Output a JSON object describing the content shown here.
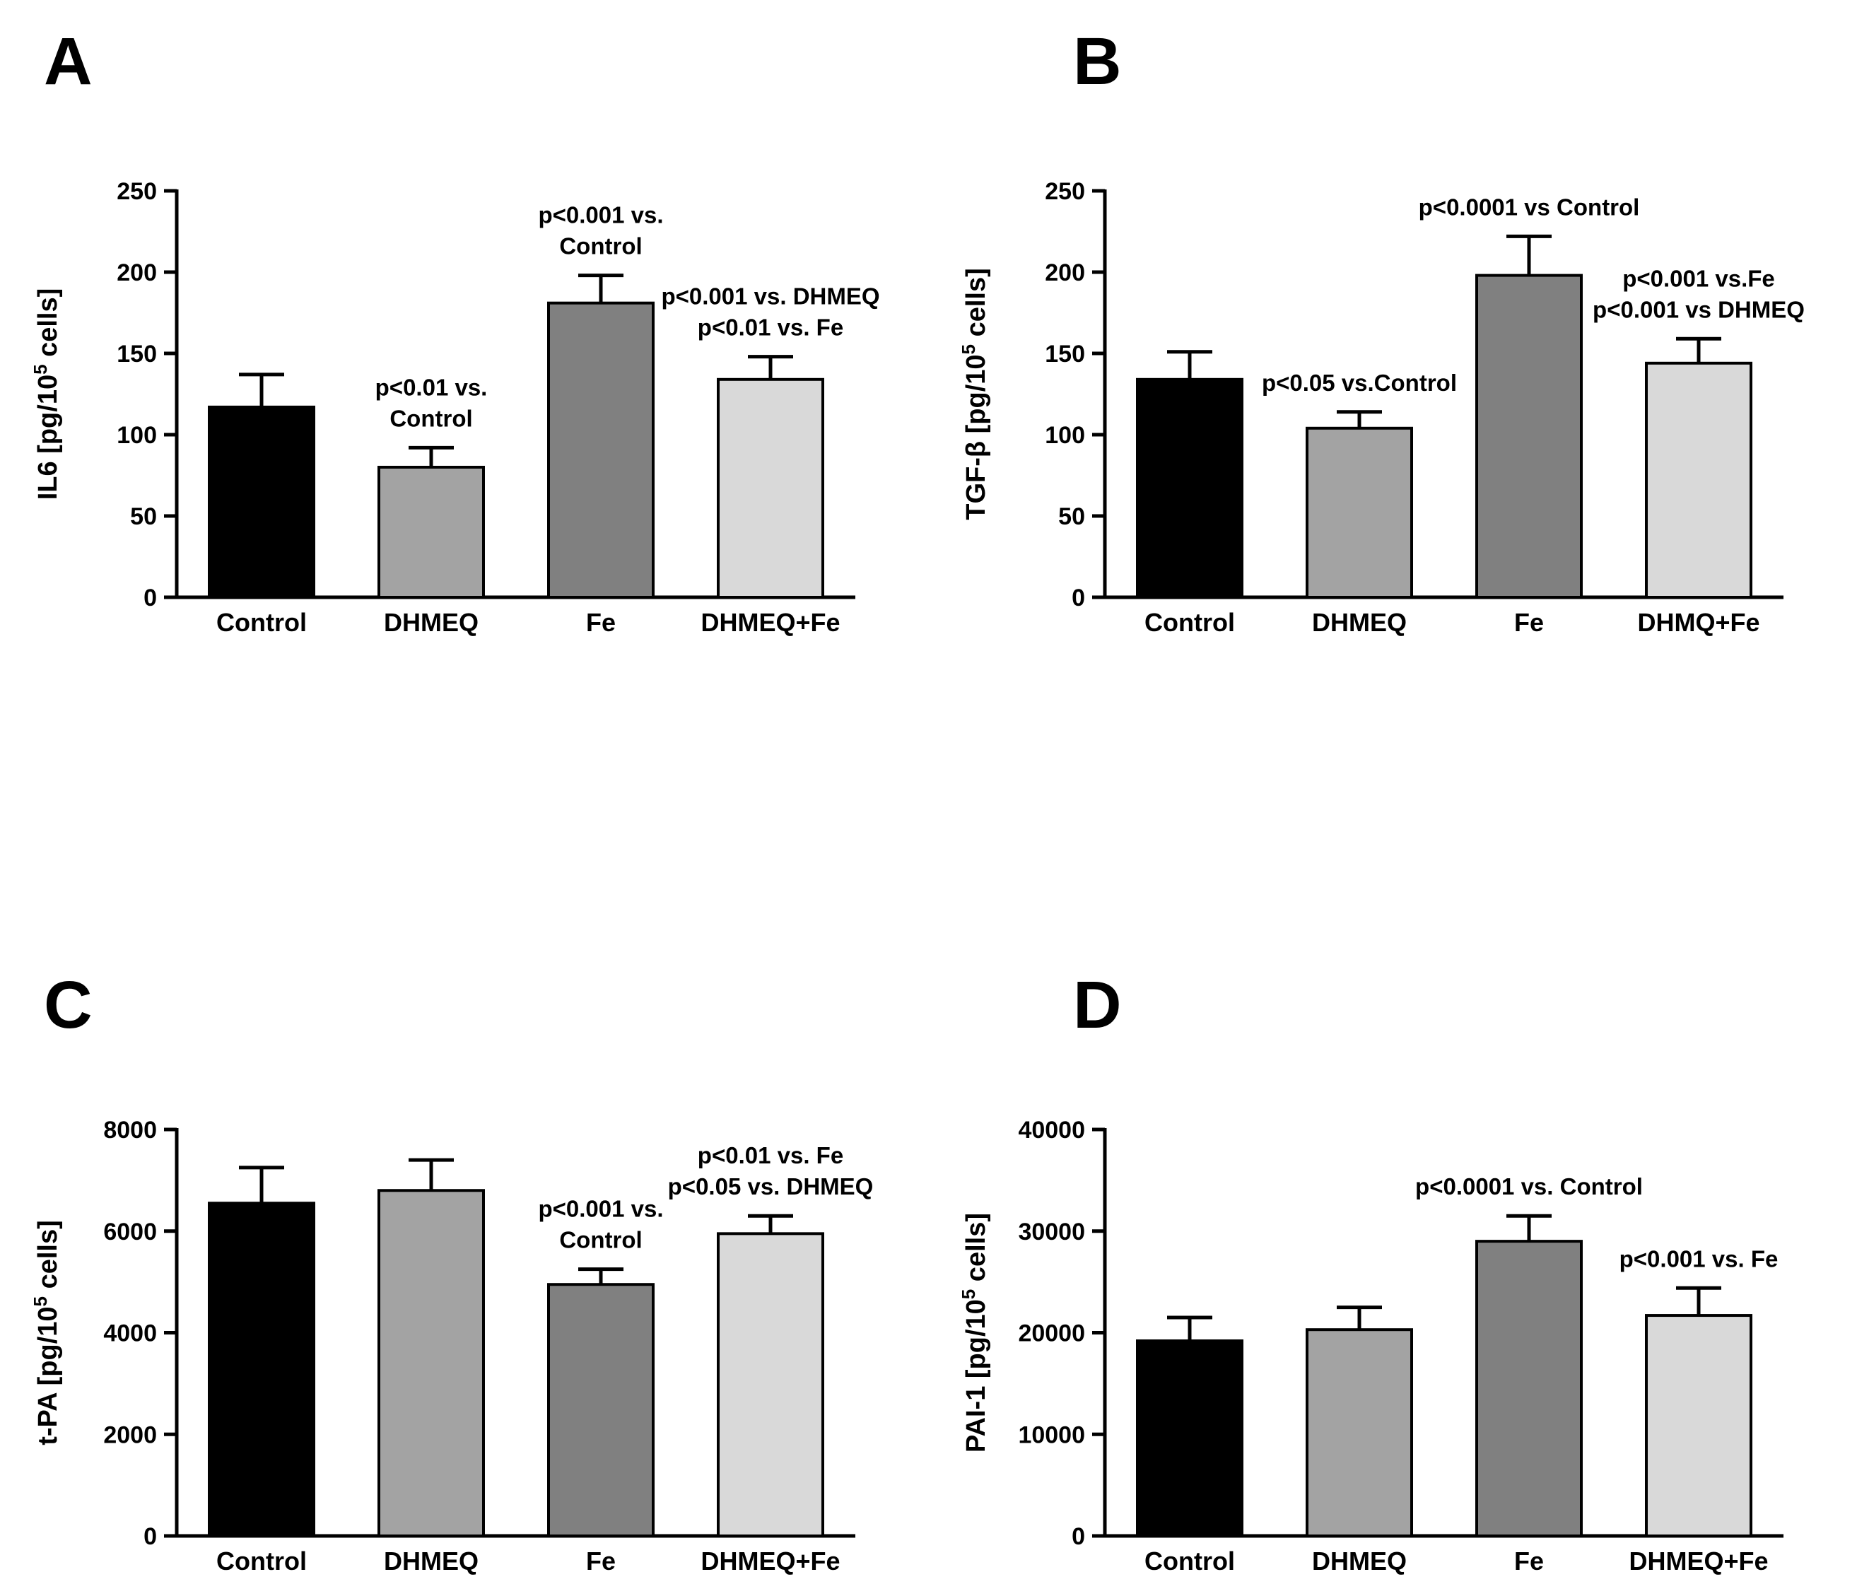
{
  "figure": {
    "background_color": "#ffffff",
    "text_color": "#000000"
  },
  "bar_colors": [
    "#000000",
    "#a3a3a3",
    "#808080",
    "#d9d9d9"
  ],
  "chart_data": [
    {
      "panel": "A",
      "type": "bar",
      "categories": [
        "Control",
        "DHMEQ",
        "Fe",
        "DHMEQ+Fe"
      ],
      "values": [
        117,
        80,
        181,
        134
      ],
      "errors_plus": [
        20,
        12,
        17,
        14
      ],
      "title": "",
      "xlabel": "",
      "ylabel": "IL6 [pg/10^5 cells]",
      "ylim": [
        0,
        250
      ],
      "yticks": [
        0,
        50,
        100,
        150,
        200,
        250
      ],
      "grid": false,
      "legend": "none",
      "annotations": [
        {
          "bar": 1,
          "lines": [
            "p<0.01 vs.",
            "Control"
          ]
        },
        {
          "bar": 2,
          "lines": [
            "p<0.001 vs.",
            "Control"
          ]
        },
        {
          "bar": 3,
          "lines": [
            "p<0.001 vs. DHMEQ",
            "p<0.01 vs. Fe"
          ]
        }
      ]
    },
    {
      "panel": "B",
      "type": "bar",
      "categories": [
        "Control",
        "DHMEQ",
        "Fe",
        "DHMQ+Fe"
      ],
      "values": [
        134,
        104,
        198,
        144
      ],
      "errors_plus": [
        17,
        10,
        24,
        15
      ],
      "title": "",
      "xlabel": "",
      "ylabel": "TGF-β [pg/10^5 cells]",
      "ylim": [
        0,
        250
      ],
      "yticks": [
        0,
        50,
        100,
        150,
        200,
        250
      ],
      "grid": false,
      "legend": "none",
      "annotations": [
        {
          "bar": 1,
          "lines": [
            "p<0.05 vs.Control"
          ]
        },
        {
          "bar": 2,
          "lines": [
            "p<0.0001 vs Control"
          ]
        },
        {
          "bar": 3,
          "lines": [
            "p<0.001 vs.Fe",
            "p<0.001 vs DHMEQ"
          ]
        }
      ]
    },
    {
      "panel": "C",
      "type": "bar",
      "categories": [
        "Control",
        "DHMEQ",
        "Fe",
        "DHMEQ+Fe"
      ],
      "values": [
        6550,
        6800,
        4950,
        5950
      ],
      "errors_plus": [
        700,
        600,
        300,
        350
      ],
      "title": "",
      "xlabel": "",
      "ylabel": "t-PA [pg/10^5 cells]",
      "ylim": [
        0,
        8000
      ],
      "yticks": [
        0,
        2000,
        4000,
        6000,
        8000
      ],
      "grid": false,
      "legend": "none",
      "annotations": [
        {
          "bar": 2,
          "lines": [
            "p<0.001 vs.",
            "Control"
          ]
        },
        {
          "bar": 3,
          "lines": [
            "p<0.01 vs. Fe",
            "p<0.05 vs. DHMEQ"
          ]
        }
      ]
    },
    {
      "panel": "D",
      "type": "bar",
      "categories": [
        "Control",
        "DHMEQ",
        "Fe",
        "DHMEQ+Fe"
      ],
      "values": [
        19200,
        20300,
        29000,
        21700
      ],
      "errors_plus": [
        2300,
        2200,
        2500,
        2700
      ],
      "title": "",
      "xlabel": "",
      "ylabel": "PAI-1 [pg/10^5 cells]",
      "ylim": [
        0,
        40000
      ],
      "yticks": [
        0,
        10000,
        20000,
        30000,
        40000
      ],
      "grid": false,
      "legend": "none",
      "annotations": [
        {
          "bar": 2,
          "lines": [
            "p<0.0001 vs. Control"
          ]
        },
        {
          "bar": 3,
          "lines": [
            "p<0.001 vs. Fe"
          ]
        }
      ]
    }
  ]
}
